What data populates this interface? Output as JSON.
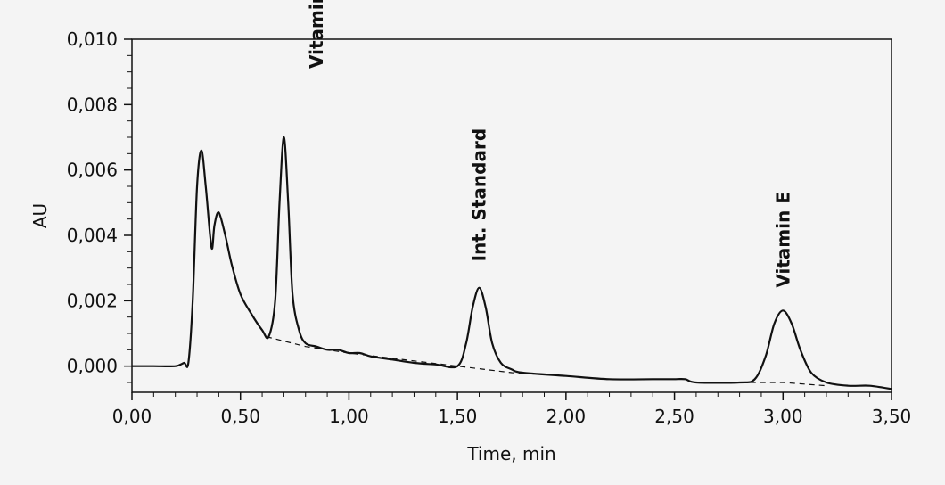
{
  "chart_data": {
    "type": "line",
    "xlabel": "Time, min",
    "ylabel": "AU",
    "xlim": [
      0,
      3.5
    ],
    "ylim": [
      -0.0008,
      0.01
    ],
    "x_ticks": [
      "0,00",
      "0,50",
      "1,00",
      "1,50",
      "2,00",
      "2,50",
      "3,00",
      "3,50"
    ],
    "y_ticks": [
      "0,000",
      "0,002",
      "0,004",
      "0,006",
      "0,008",
      "0,010"
    ],
    "grid": false,
    "peaks": [
      {
        "label": "Vitamin A",
        "time": 0.7,
        "height": 0.007
      },
      {
        "label": "Int. Standard",
        "time": 1.6,
        "height": 0.0024
      },
      {
        "label": "Vitamin E",
        "time": 3.0,
        "height": 0.0017
      }
    ],
    "series": [
      {
        "style": "solid",
        "x": [
          0.0,
          0.1,
          0.2,
          0.24,
          0.26,
          0.28,
          0.3,
          0.32,
          0.34,
          0.36,
          0.37,
          0.38,
          0.4,
          0.43,
          0.46,
          0.5,
          0.55,
          0.6,
          0.63,
          0.66,
          0.68,
          0.7,
          0.72,
          0.74,
          0.77,
          0.8,
          0.85,
          0.9,
          0.95,
          1.0,
          1.05,
          1.1,
          1.2,
          1.3,
          1.4,
          1.5,
          1.54,
          1.57,
          1.6,
          1.63,
          1.66,
          1.7,
          1.75,
          1.8,
          2.0,
          2.2,
          2.4,
          2.46,
          2.5,
          2.55,
          2.6,
          2.8,
          2.87,
          2.92,
          2.96,
          3.0,
          3.04,
          3.08,
          3.13,
          3.2,
          3.3,
          3.4,
          3.5
        ],
        "y": [
          0.0,
          0.0,
          0.0,
          0.0001,
          0.0001,
          0.002,
          0.0055,
          0.0066,
          0.0055,
          0.004,
          0.0036,
          0.0043,
          0.0047,
          0.004,
          0.0031,
          0.0022,
          0.0016,
          0.0011,
          0.0009,
          0.002,
          0.005,
          0.007,
          0.005,
          0.0022,
          0.0011,
          0.0007,
          0.0006,
          0.0005,
          0.0005,
          0.0004,
          0.0004,
          0.0003,
          0.0002,
          0.0001,
          5e-05,
          0.0,
          0.0007,
          0.0018,
          0.0024,
          0.0018,
          0.0007,
          0.0001,
          -0.0001,
          -0.0002,
          -0.0003,
          -0.0004,
          -0.0004,
          -0.0004,
          -0.0004,
          -0.0004,
          -0.0005,
          -0.0005,
          -0.0004,
          0.0003,
          0.0013,
          0.0017,
          0.0013,
          0.0005,
          -0.0002,
          -0.0005,
          -0.0006,
          -0.0006,
          -0.0007
        ]
      },
      {
        "style": "dashed",
        "x": [
          0.62,
          0.8,
          1.0,
          1.5,
          1.75,
          2.0
        ],
        "y": [
          0.0009,
          0.0006,
          0.0004,
          0.0,
          -0.0002,
          -0.0003
        ]
      },
      {
        "style": "dashed",
        "x": [
          2.85,
          3.0,
          3.2
        ],
        "y": [
          -0.0005,
          -0.0005,
          -0.0006
        ]
      }
    ]
  }
}
